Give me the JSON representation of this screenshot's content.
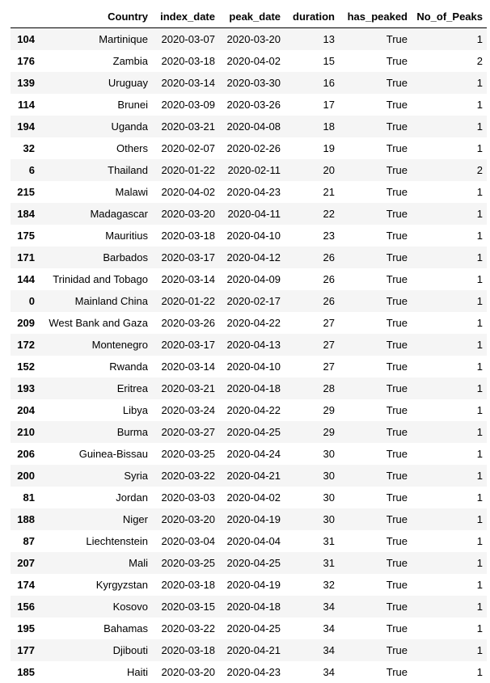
{
  "table": {
    "columns": [
      "",
      "Country",
      "index_date",
      "peak_date",
      "duration",
      "has_peaked",
      "No_of_Peaks"
    ],
    "rows": [
      {
        "index": "104",
        "country": "Martinique",
        "index_date": "2020-03-07",
        "peak_date": "2020-03-20",
        "duration": "13",
        "has_peaked": "True",
        "no_of_peaks": "1"
      },
      {
        "index": "176",
        "country": "Zambia",
        "index_date": "2020-03-18",
        "peak_date": "2020-04-02",
        "duration": "15",
        "has_peaked": "True",
        "no_of_peaks": "2"
      },
      {
        "index": "139",
        "country": "Uruguay",
        "index_date": "2020-03-14",
        "peak_date": "2020-03-30",
        "duration": "16",
        "has_peaked": "True",
        "no_of_peaks": "1"
      },
      {
        "index": "114",
        "country": "Brunei",
        "index_date": "2020-03-09",
        "peak_date": "2020-03-26",
        "duration": "17",
        "has_peaked": "True",
        "no_of_peaks": "1"
      },
      {
        "index": "194",
        "country": "Uganda",
        "index_date": "2020-03-21",
        "peak_date": "2020-04-08",
        "duration": "18",
        "has_peaked": "True",
        "no_of_peaks": "1"
      },
      {
        "index": "32",
        "country": "Others",
        "index_date": "2020-02-07",
        "peak_date": "2020-02-26",
        "duration": "19",
        "has_peaked": "True",
        "no_of_peaks": "1"
      },
      {
        "index": "6",
        "country": "Thailand",
        "index_date": "2020-01-22",
        "peak_date": "2020-02-11",
        "duration": "20",
        "has_peaked": "True",
        "no_of_peaks": "2"
      },
      {
        "index": "215",
        "country": "Malawi",
        "index_date": "2020-04-02",
        "peak_date": "2020-04-23",
        "duration": "21",
        "has_peaked": "True",
        "no_of_peaks": "1"
      },
      {
        "index": "184",
        "country": "Madagascar",
        "index_date": "2020-03-20",
        "peak_date": "2020-04-11",
        "duration": "22",
        "has_peaked": "True",
        "no_of_peaks": "1"
      },
      {
        "index": "175",
        "country": "Mauritius",
        "index_date": "2020-03-18",
        "peak_date": "2020-04-10",
        "duration": "23",
        "has_peaked": "True",
        "no_of_peaks": "1"
      },
      {
        "index": "171",
        "country": "Barbados",
        "index_date": "2020-03-17",
        "peak_date": "2020-04-12",
        "duration": "26",
        "has_peaked": "True",
        "no_of_peaks": "1"
      },
      {
        "index": "144",
        "country": "Trinidad and Tobago",
        "index_date": "2020-03-14",
        "peak_date": "2020-04-09",
        "duration": "26",
        "has_peaked": "True",
        "no_of_peaks": "1"
      },
      {
        "index": "0",
        "country": "Mainland China",
        "index_date": "2020-01-22",
        "peak_date": "2020-02-17",
        "duration": "26",
        "has_peaked": "True",
        "no_of_peaks": "1"
      },
      {
        "index": "209",
        "country": "West Bank and Gaza",
        "index_date": "2020-03-26",
        "peak_date": "2020-04-22",
        "duration": "27",
        "has_peaked": "True",
        "no_of_peaks": "1"
      },
      {
        "index": "172",
        "country": "Montenegro",
        "index_date": "2020-03-17",
        "peak_date": "2020-04-13",
        "duration": "27",
        "has_peaked": "True",
        "no_of_peaks": "1"
      },
      {
        "index": "152",
        "country": "Rwanda",
        "index_date": "2020-03-14",
        "peak_date": "2020-04-10",
        "duration": "27",
        "has_peaked": "True",
        "no_of_peaks": "1"
      },
      {
        "index": "193",
        "country": "Eritrea",
        "index_date": "2020-03-21",
        "peak_date": "2020-04-18",
        "duration": "28",
        "has_peaked": "True",
        "no_of_peaks": "1"
      },
      {
        "index": "204",
        "country": "Libya",
        "index_date": "2020-03-24",
        "peak_date": "2020-04-22",
        "duration": "29",
        "has_peaked": "True",
        "no_of_peaks": "1"
      },
      {
        "index": "210",
        "country": "Burma",
        "index_date": "2020-03-27",
        "peak_date": "2020-04-25",
        "duration": "29",
        "has_peaked": "True",
        "no_of_peaks": "1"
      },
      {
        "index": "206",
        "country": "Guinea-Bissau",
        "index_date": "2020-03-25",
        "peak_date": "2020-04-24",
        "duration": "30",
        "has_peaked": "True",
        "no_of_peaks": "1"
      },
      {
        "index": "200",
        "country": "Syria",
        "index_date": "2020-03-22",
        "peak_date": "2020-04-21",
        "duration": "30",
        "has_peaked": "True",
        "no_of_peaks": "1"
      },
      {
        "index": "81",
        "country": "Jordan",
        "index_date": "2020-03-03",
        "peak_date": "2020-04-02",
        "duration": "30",
        "has_peaked": "True",
        "no_of_peaks": "1"
      },
      {
        "index": "188",
        "country": "Niger",
        "index_date": "2020-03-20",
        "peak_date": "2020-04-19",
        "duration": "30",
        "has_peaked": "True",
        "no_of_peaks": "1"
      },
      {
        "index": "87",
        "country": "Liechtenstein",
        "index_date": "2020-03-04",
        "peak_date": "2020-04-04",
        "duration": "31",
        "has_peaked": "True",
        "no_of_peaks": "1"
      },
      {
        "index": "207",
        "country": "Mali",
        "index_date": "2020-03-25",
        "peak_date": "2020-04-25",
        "duration": "31",
        "has_peaked": "True",
        "no_of_peaks": "1"
      },
      {
        "index": "174",
        "country": "Kyrgyzstan",
        "index_date": "2020-03-18",
        "peak_date": "2020-04-19",
        "duration": "32",
        "has_peaked": "True",
        "no_of_peaks": "1"
      },
      {
        "index": "156",
        "country": "Kosovo",
        "index_date": "2020-03-15",
        "peak_date": "2020-04-18",
        "duration": "34",
        "has_peaked": "True",
        "no_of_peaks": "1"
      },
      {
        "index": "195",
        "country": "Bahamas",
        "index_date": "2020-03-22",
        "peak_date": "2020-04-25",
        "duration": "34",
        "has_peaked": "True",
        "no_of_peaks": "1"
      },
      {
        "index": "177",
        "country": "Djibouti",
        "index_date": "2020-03-18",
        "peak_date": "2020-04-21",
        "duration": "34",
        "has_peaked": "True",
        "no_of_peaks": "1"
      },
      {
        "index": "185",
        "country": "Haiti",
        "index_date": "2020-03-20",
        "peak_date": "2020-04-23",
        "duration": "34",
        "has_peaked": "True",
        "no_of_peaks": "1"
      }
    ]
  }
}
